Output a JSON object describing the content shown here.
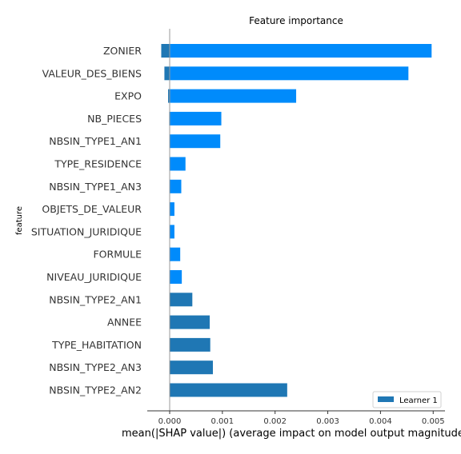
{
  "chart_data": {
    "type": "bar",
    "orientation": "horizontal",
    "title": "Feature importance",
    "xlabel": "mean(|SHAP value|) (average impact on model output magnitude)",
    "ylabel": "feature",
    "xlim": [
      -0.0004,
      0.0052
    ],
    "xticks": [
      "0.000",
      "0.001",
      "0.002",
      "0.003",
      "0.004",
      "0.005"
    ],
    "grid": false,
    "legend_position": "bottom-right",
    "categories": [
      "ZONIER",
      "VALEUR_DES_BIENS",
      "EXPO",
      "NB_PIECES",
      "NBSIN_TYPE1_AN1",
      "TYPE_RESIDENCE",
      "NBSIN_TYPE1_AN3",
      "OBJETS_DE_VALEUR",
      "SITUATION_JURIDIQUE",
      "FORMULE",
      "NIVEAU_JURIDIQUE",
      "NBSIN_TYPE2_AN1",
      "ANNEE",
      "TYPE_HABITATION",
      "NBSIN_TYPE2_AN3",
      "NBSIN_TYPE2_AN2"
    ],
    "series": [
      {
        "name": "Learner 1",
        "color": "#1f77b4",
        "values": [
          -0.00016,
          -0.0001,
          -3e-05,
          -1e-05,
          0,
          0,
          0,
          0,
          0,
          1e-05,
          1e-05,
          0.00043,
          0.00076,
          0.00077,
          0.00082,
          0.00223
        ]
      },
      {
        "color": "#008bfb",
        "values": [
          0.00497,
          0.00453,
          0.0024,
          0.00098,
          0.00096,
          0.0003,
          0.00022,
          9e-05,
          9e-05,
          0.0002,
          0.00023,
          0,
          0,
          0,
          0,
          0
        ]
      }
    ]
  }
}
